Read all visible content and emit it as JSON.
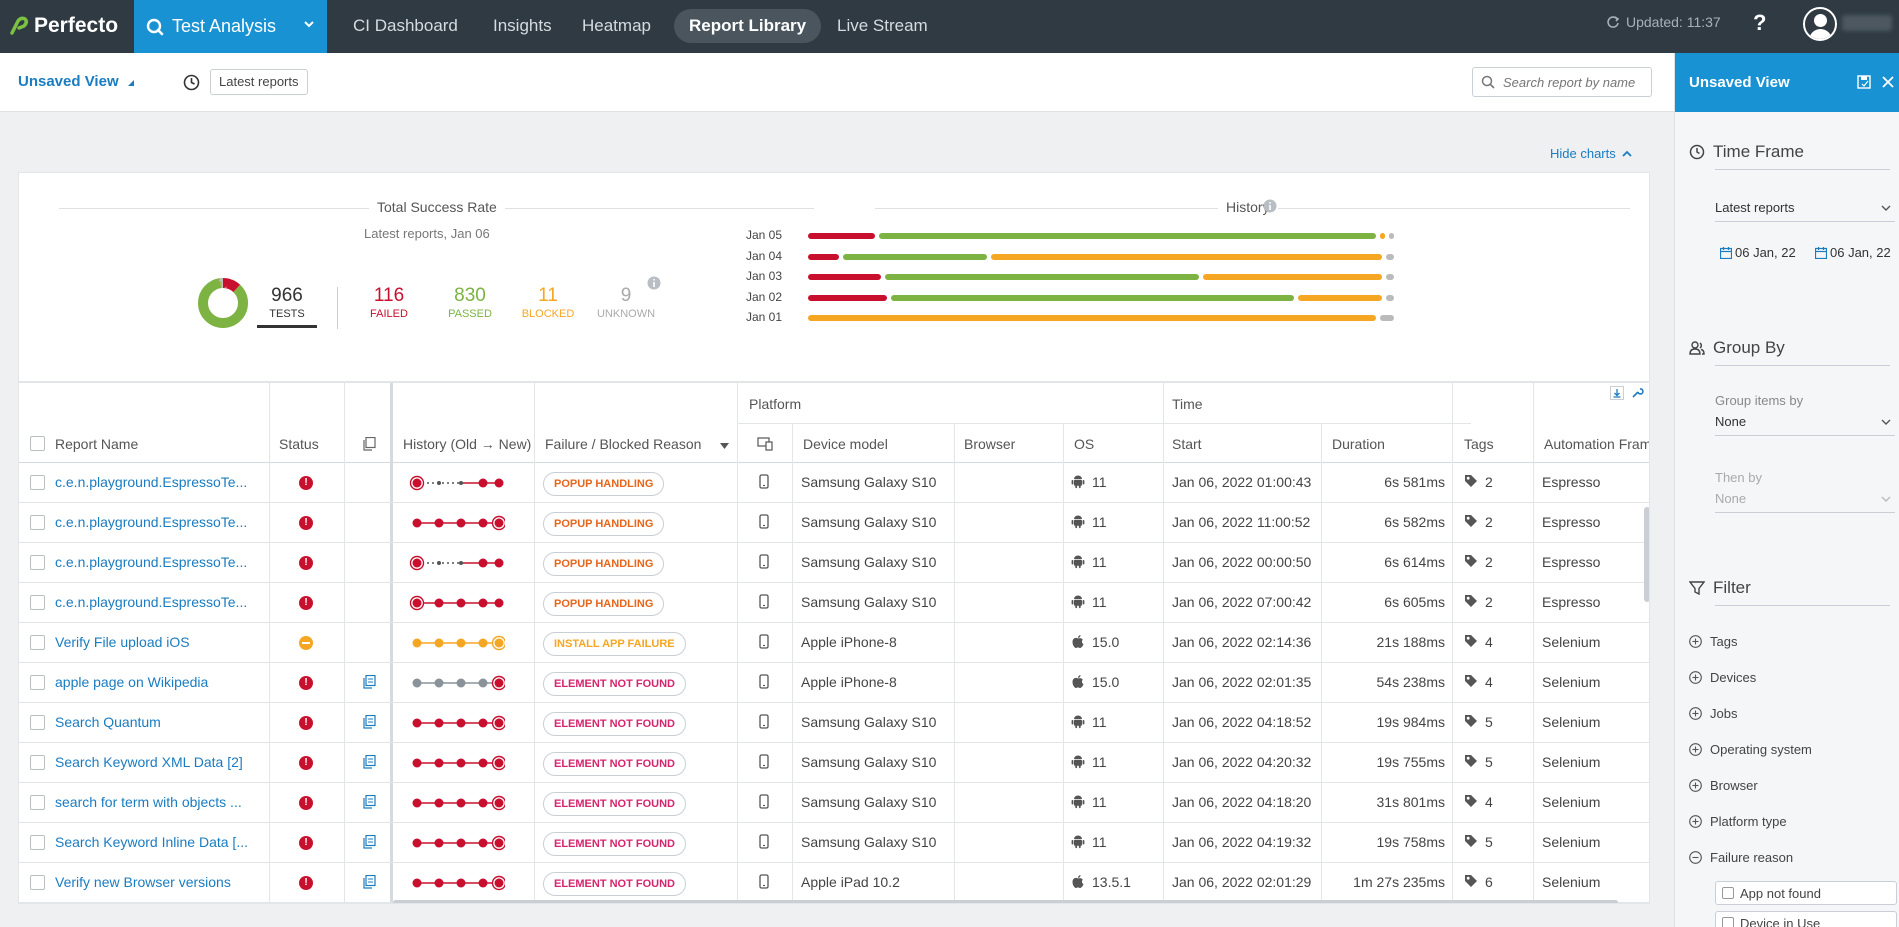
{
  "nav": {
    "logo": "Perfecto",
    "app_name": "Test Analysis",
    "tabs": [
      {
        "label": "CI Dashboard"
      },
      {
        "label": "Insights"
      },
      {
        "label": "Heatmap"
      },
      {
        "label": "Report Library"
      },
      {
        "label": "Live Stream"
      }
    ],
    "active_tab": "Report Library",
    "updated": "Updated: 11:37",
    "help": "?"
  },
  "subheader": {
    "view_name": "Unsaved View",
    "chip": "Latest reports",
    "search_placeholder": "Search report by name"
  },
  "charts": {
    "hide_charts": "Hide charts",
    "success_title": "Total Success Rate",
    "success_sub": "Latest reports, Jan 06",
    "history_title": "History",
    "stats": {
      "tests": {
        "value": "966",
        "label": "TESTS"
      },
      "failed": {
        "value": "116",
        "label": "FAILED"
      },
      "passed": {
        "value": "830",
        "label": "PASSED"
      },
      "blocked": {
        "value": "11",
        "label": "BLOCKED"
      },
      "unknown": {
        "value": "9",
        "label": "UNKNOWN"
      }
    },
    "colors": {
      "failed": "#c8102e",
      "passed": "#7cb342",
      "blocked": "#f5a623",
      "unknown": "#bbbbbb"
    },
    "history": [
      {
        "date": "Jan 05",
        "failed": 0.12,
        "passed": 0.85,
        "blocked": 0.015,
        "unknown": 0.015
      },
      {
        "date": "Jan 04",
        "failed": 0.06,
        "passed": 0.25,
        "blocked": 0.67,
        "unknown": 0.02
      },
      {
        "date": "Jan 03",
        "failed": 0.13,
        "passed": 0.54,
        "blocked": 0.31,
        "unknown": 0.02
      },
      {
        "date": "Jan 02",
        "failed": 0.14,
        "passed": 0.69,
        "blocked": 0.15,
        "unknown": 0.02
      },
      {
        "date": "Jan 01",
        "failed": 0.0,
        "passed": 0.0,
        "blocked": 0.97,
        "unknown": 0.03
      }
    ]
  },
  "table": {
    "group_platform": "Platform",
    "group_time": "Time",
    "columns": {
      "report_name": "Report Name",
      "status": "Status",
      "history": "History (Old → New)",
      "failure_reason": "Failure / Blocked Reason",
      "device_model": "Device model",
      "browser": "Browser",
      "os": "OS",
      "start": "Start",
      "duration": "Duration",
      "tags": "Tags",
      "automation": "Automation Frame"
    },
    "rows": [
      {
        "name": "c.e.n.playground.EspressoTe...",
        "status": "failed",
        "doc": false,
        "history": "dash",
        "reason": "POPUP HANDLING",
        "reason_color": "#e8651a",
        "platform": "mobile",
        "device": "Samsung Galaxy S10",
        "os": "android",
        "os_ver": "11",
        "start": "Jan 06, 2022 01:00:43",
        "duration": "6s 581ms",
        "tags": "2",
        "framework": "Espresso"
      },
      {
        "name": "c.e.n.playground.EspressoTe...",
        "status": "failed",
        "doc": false,
        "history": "red-last",
        "reason": "POPUP HANDLING",
        "reason_color": "#e8651a",
        "platform": "mobile",
        "device": "Samsung Galaxy S10",
        "os": "android",
        "os_ver": "11",
        "start": "Jan 06, 2022 11:00:52",
        "duration": "6s 582ms",
        "tags": "2",
        "framework": "Espresso"
      },
      {
        "name": "c.e.n.playground.EspressoTe...",
        "status": "failed",
        "doc": false,
        "history": "dash",
        "reason": "POPUP HANDLING",
        "reason_color": "#e8651a",
        "platform": "mobile",
        "device": "Samsung Galaxy S10",
        "os": "android",
        "os_ver": "11",
        "start": "Jan 06, 2022 00:00:50",
        "duration": "6s 614ms",
        "tags": "2",
        "framework": "Espresso"
      },
      {
        "name": "c.e.n.playground.EspressoTe...",
        "status": "failed",
        "doc": false,
        "history": "red-first",
        "reason": "POPUP HANDLING",
        "reason_color": "#e8651a",
        "platform": "mobile",
        "device": "Samsung Galaxy S10",
        "os": "android",
        "os_ver": "11",
        "start": "Jan 06, 2022 07:00:42",
        "duration": "6s 605ms",
        "tags": "2",
        "framework": "Espresso"
      },
      {
        "name": "Verify File upload iOS",
        "status": "blocked",
        "doc": false,
        "history": "orange",
        "reason": "INSTALL APP FAILURE",
        "reason_color": "#f5a623",
        "platform": "mobile",
        "device": "Apple iPhone-8",
        "os": "apple",
        "os_ver": "15.0",
        "start": "Jan 06, 2022 02:14:36",
        "duration": "21s 188ms",
        "tags": "4",
        "framework": "Selenium"
      },
      {
        "name": "apple page on Wikipedia",
        "status": "failed",
        "doc": true,
        "history": "grey",
        "reason": "ELEMENT NOT FOUND",
        "reason_color": "#d6246e",
        "platform": "mobile",
        "device": "Apple iPhone-8",
        "os": "apple",
        "os_ver": "15.0",
        "start": "Jan 06, 2022 02:01:35",
        "duration": "54s 238ms",
        "tags": "4",
        "framework": "Selenium"
      },
      {
        "name": "Search Quantum",
        "status": "failed",
        "doc": true,
        "history": "red-last",
        "reason": "ELEMENT NOT FOUND",
        "reason_color": "#d6246e",
        "platform": "mobile",
        "device": "Samsung Galaxy S10",
        "os": "android",
        "os_ver": "11",
        "start": "Jan 06, 2022 04:18:52",
        "duration": "19s 984ms",
        "tags": "5",
        "framework": "Selenium"
      },
      {
        "name": "Search Keyword XML Data [2]",
        "status": "failed",
        "doc": true,
        "history": "red-last",
        "reason": "ELEMENT NOT FOUND",
        "reason_color": "#d6246e",
        "platform": "mobile",
        "device": "Samsung Galaxy S10",
        "os": "android",
        "os_ver": "11",
        "start": "Jan 06, 2022 04:20:32",
        "duration": "19s 755ms",
        "tags": "5",
        "framework": "Selenium"
      },
      {
        "name": "search for term with objects ...",
        "status": "failed",
        "doc": true,
        "history": "red-last",
        "reason": "ELEMENT NOT FOUND",
        "reason_color": "#d6246e",
        "platform": "mobile",
        "device": "Samsung Galaxy S10",
        "os": "android",
        "os_ver": "11",
        "start": "Jan 06, 2022 04:18:20",
        "duration": "31s 801ms",
        "tags": "4",
        "framework": "Selenium"
      },
      {
        "name": "Search Keyword Inline Data [...",
        "status": "failed",
        "doc": true,
        "history": "red-last",
        "reason": "ELEMENT NOT FOUND",
        "reason_color": "#d6246e",
        "platform": "mobile",
        "device": "Samsung Galaxy S10",
        "os": "android",
        "os_ver": "11",
        "start": "Jan 06, 2022 04:19:32",
        "duration": "19s 758ms",
        "tags": "5",
        "framework": "Selenium"
      },
      {
        "name": "Verify new Browser versions",
        "status": "failed",
        "doc": true,
        "history": "red-last",
        "reason": "ELEMENT NOT FOUND",
        "reason_color": "#d6246e",
        "platform": "mobile",
        "device": "Apple iPad 10.2",
        "os": "apple",
        "os_ver": "13.5.1",
        "start": "Jan 06, 2022 02:01:29",
        "duration": "1m 27s 235ms",
        "tags": "6",
        "framework": "Selenium"
      }
    ]
  },
  "panel": {
    "title": "Unsaved View",
    "time_frame": {
      "title": "Time Frame",
      "selection": "Latest reports",
      "from": "06 Jan, 22",
      "to": "06 Jan, 22"
    },
    "group_by": {
      "title": "Group By",
      "group_label": "Group items by",
      "group_value": "None",
      "then_label": "Then by",
      "then_value": "None"
    },
    "filter": {
      "title": "Filter",
      "items": [
        {
          "label": "Tags",
          "state": "+"
        },
        {
          "label": "Devices",
          "state": "+"
        },
        {
          "label": "Jobs",
          "state": "+"
        },
        {
          "label": "Operating system",
          "state": "+"
        },
        {
          "label": "Browser",
          "state": "+"
        },
        {
          "label": "Platform type",
          "state": "+"
        },
        {
          "label": "Failure reason",
          "state": "-"
        }
      ],
      "chips": [
        {
          "label": "App not found"
        },
        {
          "label": "Device in Use"
        }
      ]
    }
  }
}
